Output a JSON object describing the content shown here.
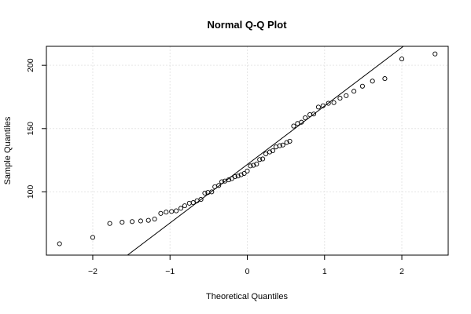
{
  "chart_data": {
    "type": "scatter",
    "title": "Normal Q-Q Plot",
    "xlabel": "Theoretical Quantiles",
    "ylabel": "Sample Quantiles",
    "xlim": [
      -2.6,
      2.6
    ],
    "ylim": [
      50,
      215
    ],
    "xticks": [
      -2,
      -1,
      0,
      1,
      2
    ],
    "yticks": [
      100,
      150,
      200
    ],
    "grid": true,
    "qq_line": {
      "x1": -1.55,
      "y1": 50,
      "x2": 2.02,
      "y2": 215
    },
    "points": [
      [
        -2.43,
        59
      ],
      [
        -2.0,
        64
      ],
      [
        -1.78,
        75
      ],
      [
        -1.62,
        76
      ],
      [
        -1.49,
        76.5
      ],
      [
        -1.38,
        77
      ],
      [
        -1.28,
        77.5
      ],
      [
        -1.2,
        78.5
      ],
      [
        -1.12,
        83
      ],
      [
        -1.05,
        84
      ],
      [
        -0.98,
        84.5
      ],
      [
        -0.92,
        85
      ],
      [
        -0.86,
        87
      ],
      [
        -0.81,
        89
      ],
      [
        -0.75,
        91
      ],
      [
        -0.7,
        91.5
      ],
      [
        -0.65,
        93
      ],
      [
        -0.6,
        94
      ],
      [
        -0.55,
        99
      ],
      [
        -0.51,
        99.5
      ],
      [
        -0.46,
        100
      ],
      [
        -0.42,
        104
      ],
      [
        -0.37,
        105
      ],
      [
        -0.33,
        108
      ],
      [
        -0.29,
        108.5
      ],
      [
        -0.24,
        109.5
      ],
      [
        -0.2,
        110.5
      ],
      [
        -0.16,
        112
      ],
      [
        -0.12,
        112.5
      ],
      [
        -0.08,
        113.5
      ],
      [
        -0.04,
        114.5
      ],
      [
        0.0,
        116.5
      ],
      [
        0.04,
        120.5
      ],
      [
        0.08,
        121
      ],
      [
        0.12,
        122
      ],
      [
        0.16,
        125.5
      ],
      [
        0.2,
        126
      ],
      [
        0.24,
        130
      ],
      [
        0.29,
        131.5
      ],
      [
        0.33,
        132.5
      ],
      [
        0.37,
        135.5
      ],
      [
        0.42,
        136.5
      ],
      [
        0.46,
        137
      ],
      [
        0.51,
        139
      ],
      [
        0.55,
        140
      ],
      [
        0.6,
        152
      ],
      [
        0.65,
        154
      ],
      [
        0.7,
        155
      ],
      [
        0.75,
        158.5
      ],
      [
        0.81,
        161
      ],
      [
        0.86,
        161.5
      ],
      [
        0.92,
        167
      ],
      [
        0.98,
        168
      ],
      [
        1.05,
        170
      ],
      [
        1.12,
        170.5
      ],
      [
        1.2,
        174
      ],
      [
        1.28,
        176
      ],
      [
        1.38,
        179.5
      ],
      [
        1.49,
        183.5
      ],
      [
        1.62,
        187.5
      ],
      [
        1.78,
        189.5
      ],
      [
        2.0,
        205
      ],
      [
        2.43,
        209
      ]
    ]
  }
}
